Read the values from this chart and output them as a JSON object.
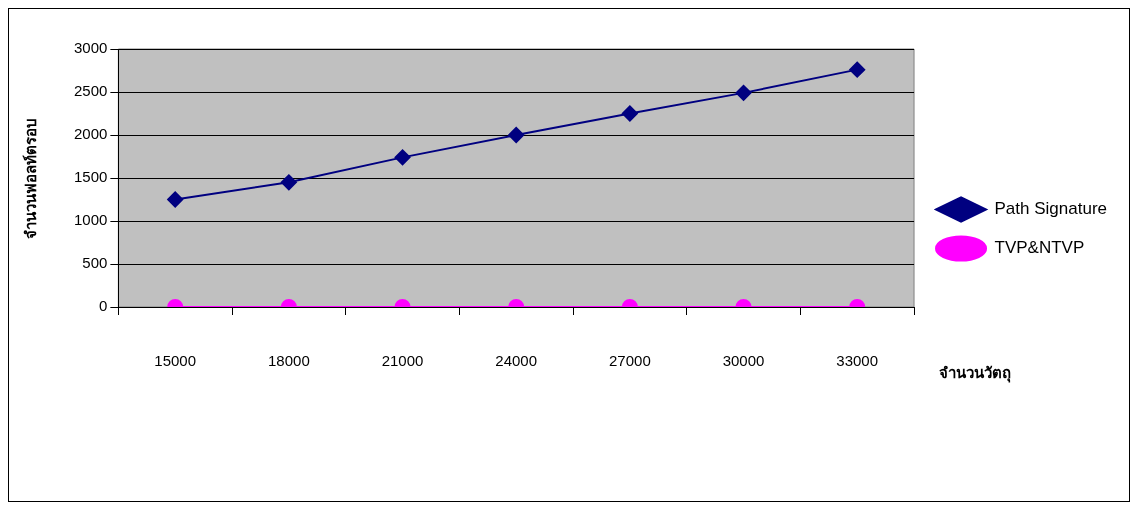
{
  "chart_data": {
    "type": "line",
    "xlabel": "จำนวนวัตถุ",
    "ylabel": "จำนวนฟอลท์ตรอบ",
    "categories": [
      "15000",
      "18000",
      "21000",
      "24000",
      "27000",
      "30000",
      "33000"
    ],
    "series": [
      {
        "name": "Path Signature",
        "color": "#000080",
        "marker": "diamond",
        "values": [
          1250,
          1450,
          1740,
          2000,
          2250,
          2490,
          2760
        ]
      },
      {
        "name": "TVP&NTVP",
        "color": "#ff00ff",
        "marker": "circle",
        "values": [
          0,
          0,
          0,
          0,
          0,
          0,
          0
        ]
      }
    ],
    "ylim": [
      0,
      3000
    ],
    "yticks": [
      0,
      500,
      1000,
      1500,
      2000,
      2500,
      3000
    ],
    "grid": "y",
    "legend": "right",
    "line_style": "solid"
  }
}
